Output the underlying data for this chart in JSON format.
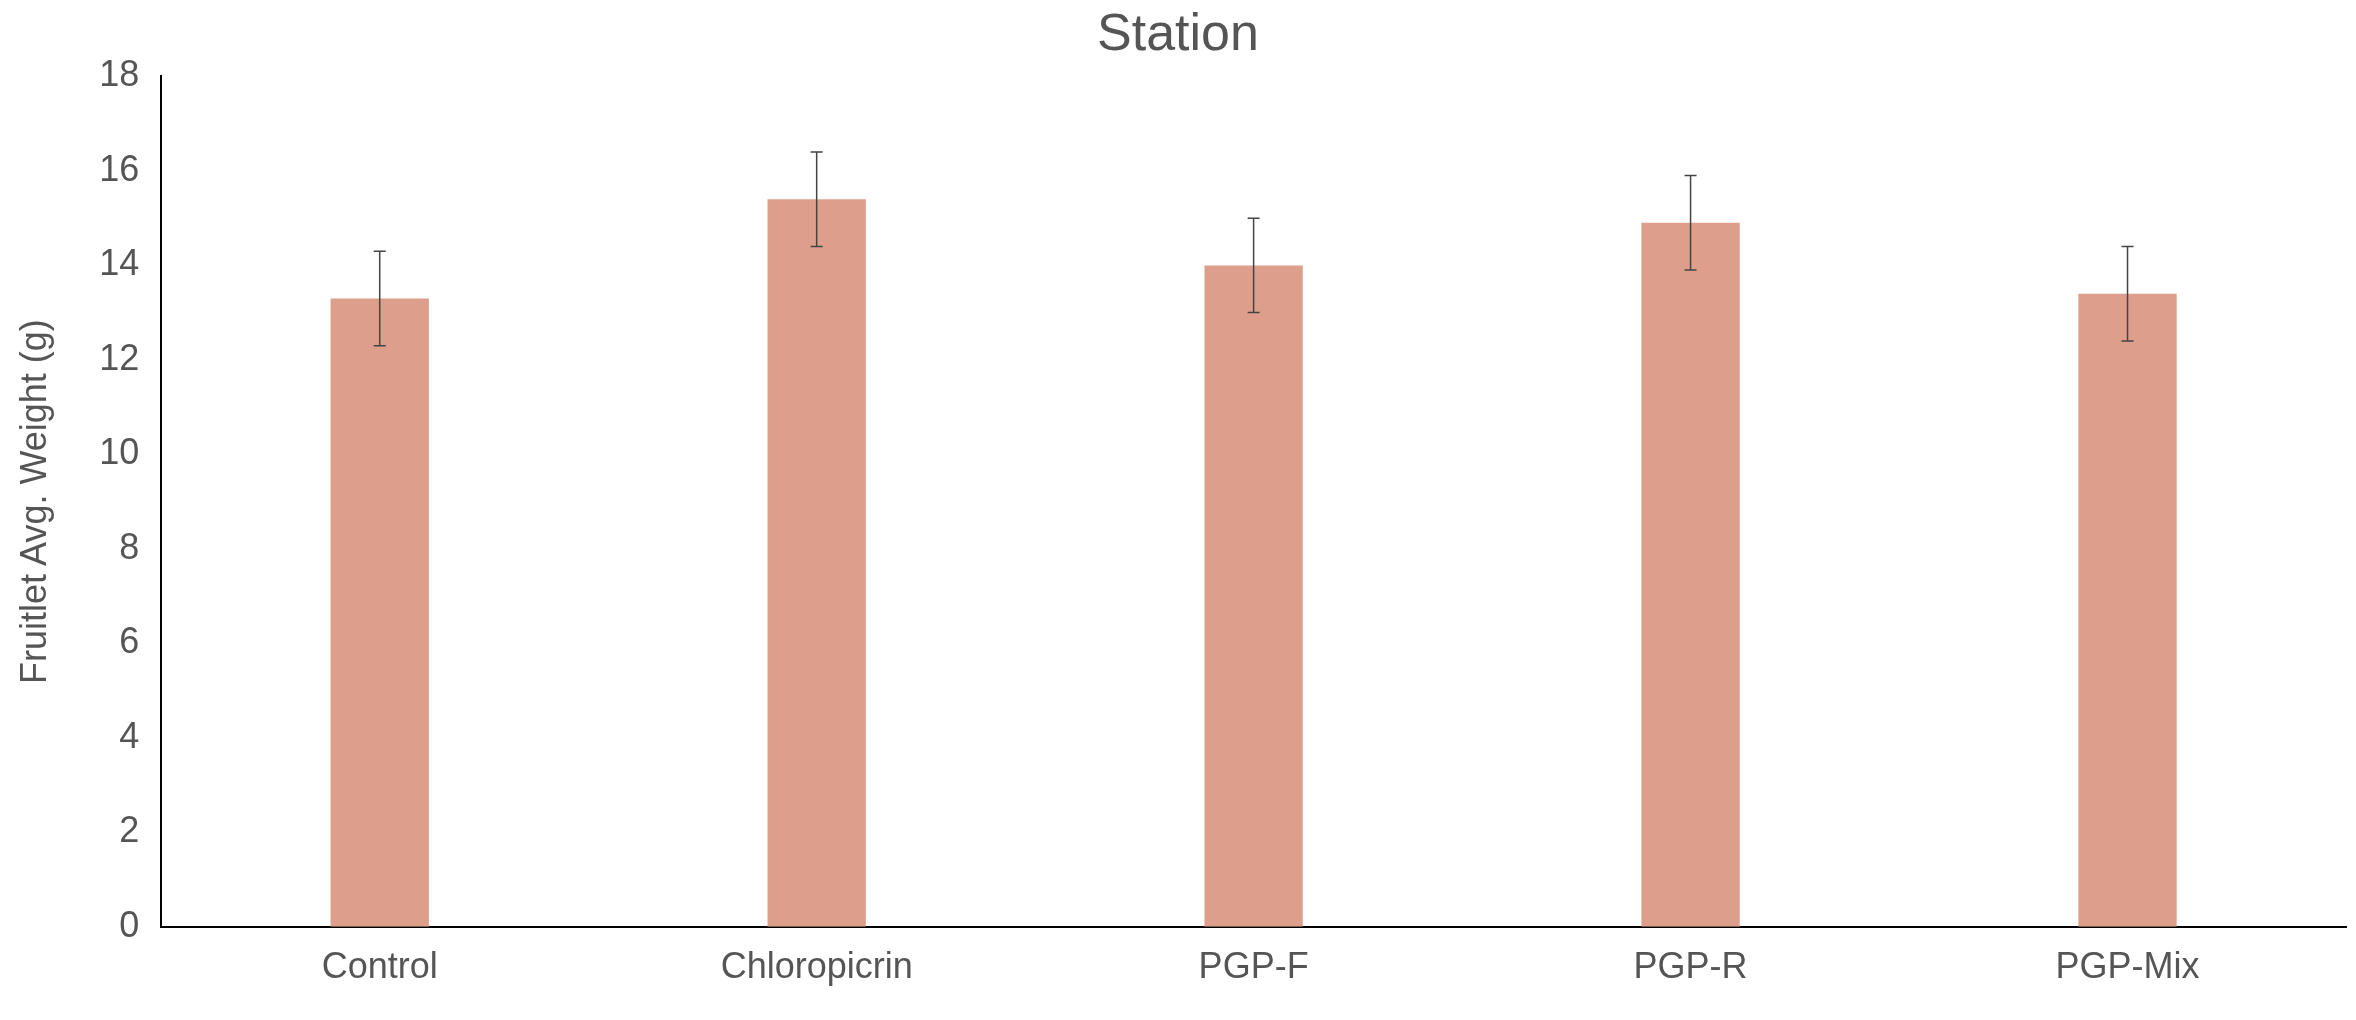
{
  "chart_data": {
    "type": "bar",
    "title": "Station",
    "ylabel": "Fruitlet Avg. Weight (g)",
    "categories": [
      "Control",
      "Chloropicrin",
      "PGP-F",
      "PGP-R",
      "PGP-Mix"
    ],
    "values": [
      13.3,
      15.4,
      14.0,
      14.9,
      13.4
    ],
    "errors": [
      1,
      1,
      1,
      1,
      1
    ],
    "color": "#dd9f8b",
    "ylim": [
      0,
      18
    ],
    "yticks": [
      0,
      2,
      4,
      6,
      8,
      10,
      12,
      14,
      16,
      18
    ],
    "grid": false,
    "legend": false
  }
}
